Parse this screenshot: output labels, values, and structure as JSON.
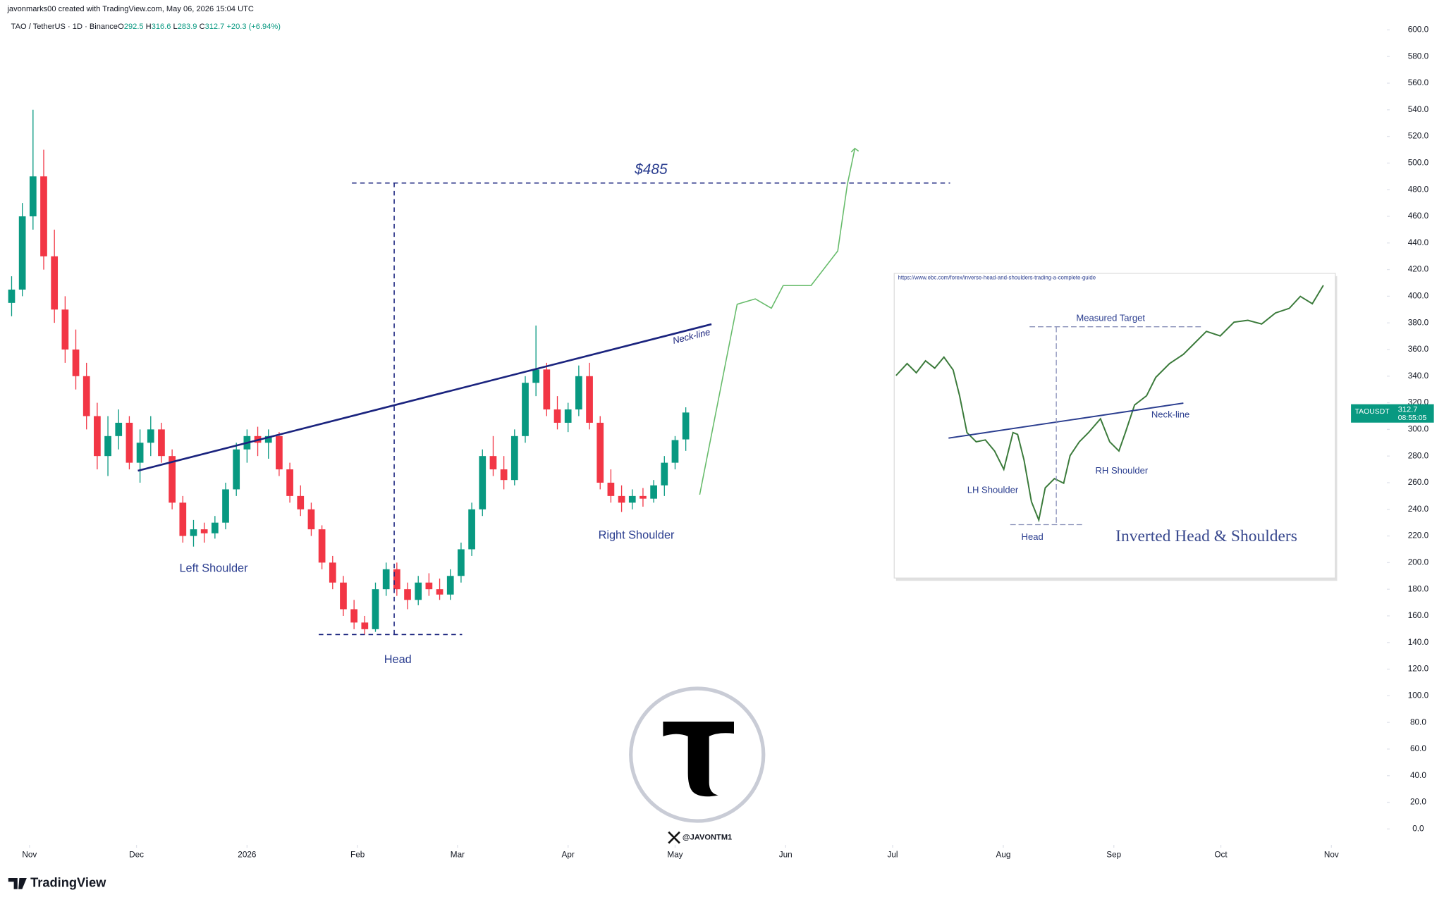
{
  "header": {
    "credit": "javonmarks00 created with TradingView.com, May 06, 2026 15:04 UTC",
    "symbol": "TAO / TetherUS · 1D · Binance",
    "ohlc_letters": [
      "O",
      "H",
      "L",
      "C"
    ],
    "change": "+20.3 (+6.94%)",
    "ticker": "TAOUSDT",
    "countdown": "08:55:05"
  },
  "chart_data": {
    "type": "candlestick",
    "up_color": "#089981",
    "down_color": "#f23645",
    "grid": false,
    "xlim": [
      -0.5,
      128.5
    ],
    "ylim": [
      -12,
      610
    ],
    "xticks": [
      {
        "value": 1.67,
        "label": "Nov"
      },
      {
        "value": 11.67,
        "label": "Dec"
      },
      {
        "value": 22,
        "label": "2026"
      },
      {
        "value": 32.33,
        "label": "Feb"
      },
      {
        "value": 41.67,
        "label": "Mar"
      },
      {
        "value": 52,
        "label": "Apr"
      },
      {
        "value": 62,
        "label": "May"
      },
      {
        "value": 72.33,
        "label": "Jun"
      },
      {
        "value": 82.33,
        "label": "Jul"
      },
      {
        "value": 92.67,
        "label": "Aug"
      },
      {
        "value": 103,
        "label": "Sep"
      },
      {
        "value": 113,
        "label": "Oct"
      },
      {
        "value": 123.33,
        "label": "Nov"
      }
    ],
    "yticks": [
      {
        "value": 0,
        "label": "0.0"
      },
      {
        "value": 20,
        "label": "20.0"
      },
      {
        "value": 40,
        "label": "40.0"
      },
      {
        "value": 60,
        "label": "60.0"
      },
      {
        "value": 80,
        "label": "80.0"
      },
      {
        "value": 100,
        "label": "100.0"
      },
      {
        "value": 120,
        "label": "120.0"
      },
      {
        "value": 140,
        "label": "140.0"
      },
      {
        "value": 160,
        "label": "160.0"
      },
      {
        "value": 180,
        "label": "180.0"
      },
      {
        "value": 200,
        "label": "200.0"
      },
      {
        "value": 220,
        "label": "220.0"
      },
      {
        "value": 240,
        "label": "240.0"
      },
      {
        "value": 260,
        "label": "260.0"
      },
      {
        "value": 280,
        "label": "280.0"
      },
      {
        "value": 300,
        "label": "300.0"
      },
      {
        "value": 320,
        "label": "320.0"
      },
      {
        "value": 340,
        "label": "340.0"
      },
      {
        "value": 360,
        "label": "360.0"
      },
      {
        "value": 380,
        "label": "380.0"
      },
      {
        "value": 400,
        "label": "400.0"
      },
      {
        "value": 420,
        "label": "420.0"
      },
      {
        "value": 440,
        "label": "440.0"
      },
      {
        "value": 460,
        "label": "460.0"
      },
      {
        "value": 480,
        "label": "480.0"
      },
      {
        "value": 500,
        "label": "500.0"
      },
      {
        "value": 520,
        "label": "520.0"
      },
      {
        "value": 540,
        "label": "540.0"
      },
      {
        "value": 560,
        "label": "560.0"
      },
      {
        "value": 580,
        "label": "580.0"
      },
      {
        "value": 600,
        "label": "600.0"
      }
    ],
    "candles": [
      [
        395,
        415,
        385,
        405
      ],
      [
        405,
        470,
        400,
        460
      ],
      [
        460,
        540,
        450,
        490
      ],
      [
        490,
        510,
        420,
        430
      ],
      [
        430,
        450,
        380,
        390
      ],
      [
        390,
        400,
        350,
        360
      ],
      [
        360,
        375,
        330,
        340
      ],
      [
        340,
        350,
        300,
        310
      ],
      [
        310,
        320,
        270,
        280
      ],
      [
        280,
        310,
        265,
        295
      ],
      [
        295,
        315,
        285,
        305
      ],
      [
        305,
        310,
        270,
        275
      ],
      [
        275,
        300,
        260,
        290
      ],
      [
        290,
        310,
        280,
        300
      ],
      [
        300,
        305,
        275,
        280
      ],
      [
        280,
        285,
        240,
        245
      ],
      [
        245,
        250,
        215,
        220
      ],
      [
        220,
        232,
        212,
        225
      ],
      [
        225,
        230,
        215,
        222
      ],
      [
        222,
        235,
        218,
        230
      ],
      [
        230,
        260,
        225,
        255
      ],
      [
        255,
        290,
        250,
        285
      ],
      [
        285,
        300,
        275,
        295
      ],
      [
        295,
        302,
        280,
        290
      ],
      [
        290,
        300,
        278,
        295
      ],
      [
        295,
        298,
        265,
        270
      ],
      [
        270,
        275,
        245,
        250
      ],
      [
        250,
        258,
        235,
        240
      ],
      [
        240,
        245,
        220,
        225
      ],
      [
        225,
        228,
        195,
        200
      ],
      [
        200,
        205,
        180,
        185
      ],
      [
        185,
        190,
        160,
        165
      ],
      [
        165,
        172,
        150,
        155
      ],
      [
        155,
        160,
        146,
        150
      ],
      [
        150,
        185,
        148,
        180
      ],
      [
        180,
        200,
        175,
        195
      ],
      [
        195,
        200,
        175,
        180
      ],
      [
        180,
        185,
        165,
        172
      ],
      [
        172,
        190,
        168,
        185
      ],
      [
        185,
        192,
        175,
        180
      ],
      [
        180,
        188,
        172,
        176
      ],
      [
        176,
        195,
        172,
        190
      ],
      [
        190,
        215,
        185,
        210
      ],
      [
        210,
        245,
        205,
        240
      ],
      [
        240,
        285,
        235,
        280
      ],
      [
        280,
        295,
        265,
        270
      ],
      [
        270,
        280,
        255,
        262
      ],
      [
        262,
        300,
        258,
        295
      ],
      [
        295,
        340,
        290,
        335
      ],
      [
        335,
        378,
        325,
        345
      ],
      [
        345,
        350,
        310,
        315
      ],
      [
        315,
        325,
        300,
        305
      ],
      [
        305,
        320,
        298,
        315
      ],
      [
        315,
        348,
        310,
        340
      ],
      [
        340,
        350,
        300,
        305
      ],
      [
        305,
        310,
        255,
        260
      ],
      [
        260,
        270,
        245,
        250
      ],
      [
        250,
        258,
        238,
        245
      ],
      [
        245,
        255,
        240,
        250
      ],
      [
        250,
        256,
        242,
        248
      ],
      [
        248,
        262,
        245,
        258
      ],
      [
        258,
        280,
        250,
        275
      ],
      [
        275,
        295,
        270,
        292
      ],
      [
        292.5,
        316.6,
        283.9,
        312.7
      ]
    ],
    "neckline": {
      "label": "Neck-line",
      "color": "#1a237e",
      "x": [
        11.8,
        65.4
      ],
      "y": [
        269,
        379
      ]
    },
    "target": {
      "label": "$485",
      "value": 485,
      "x": [
        31.8,
        87.7
      ]
    },
    "head_line": {
      "value": 146,
      "x": [
        28.7,
        42.1
      ]
    },
    "measure": {
      "x": 35.75,
      "y": [
        146,
        485
      ]
    },
    "projection": {
      "color": "#66bb6a",
      "x": [
        64.3,
        67.8,
        69.5,
        71,
        72.1,
        74.7,
        77.2,
        78.1,
        78.8
      ],
      "y": [
        251,
        394,
        398,
        391,
        408,
        408,
        434,
        484,
        511
      ]
    },
    "labels": [
      "Left Shoulder",
      "Head",
      "Right Shoulder"
    ]
  },
  "inset": {
    "url": "https://www.ebc.com/forex/inverse-head-and-shoulders-trading-a-complete-guide",
    "measured_target": "Measured Target",
    "neck_line": "Neck-line",
    "lh": "LH Shoulder",
    "rh": "RH Shoulder",
    "head": "Head",
    "title": "Inverted Head & Shoulders"
  },
  "watermark": {
    "handle": "@JAVONTM1"
  },
  "footer": {
    "brand": "TradingView"
  }
}
